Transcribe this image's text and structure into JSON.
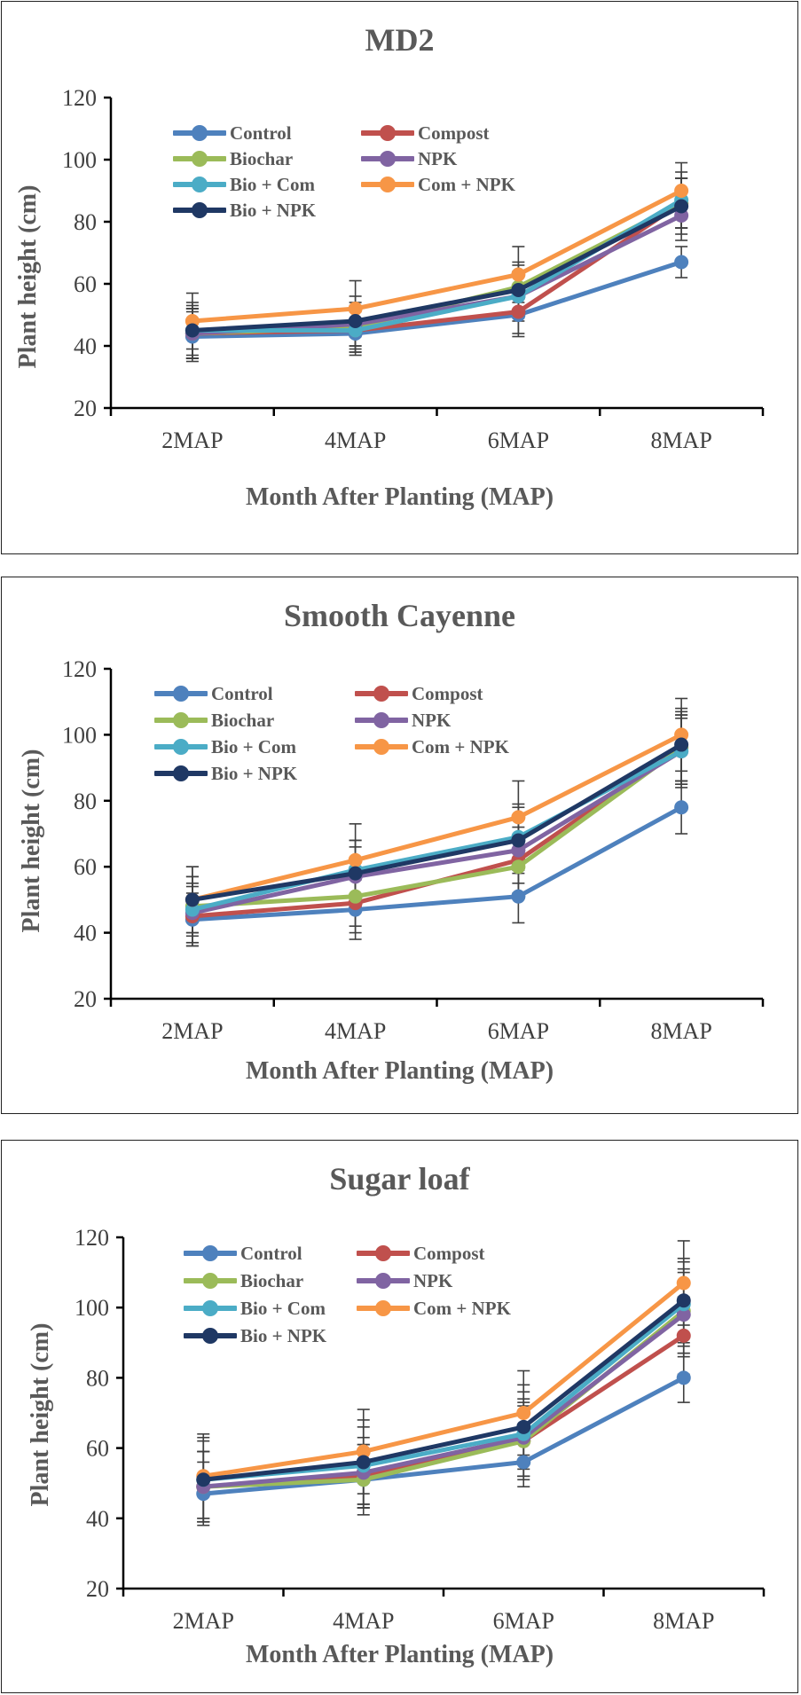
{
  "colors": {
    "Control": "#4e81bd",
    "Compost": "#c0504d",
    "Biochar": "#9bbb59",
    "NPK": "#8064a2",
    "Bio + Com": "#4bacc6",
    "Com + NPK": "#f79646",
    "Bio + NPK": "#1f3864",
    "axis": "#000000",
    "errorbar": "#404040",
    "text": "#595959"
  },
  "chart_data": [
    {
      "type": "line",
      "title": "MD2",
      "xlabel": "Month After Planting (MAP)",
      "ylabel": "Plant height (cm)",
      "ylim": [
        20,
        120
      ],
      "yticks": [
        20,
        40,
        60,
        80,
        100,
        120
      ],
      "categories": [
        "2MAP",
        "4MAP",
        "6MAP",
        "8MAP"
      ],
      "legend": "top-left",
      "series": [
        {
          "name": "Control",
          "values": [
            43,
            44,
            50,
            67
          ],
          "errors": [
            8,
            7,
            7,
            5
          ]
        },
        {
          "name": "Compost",
          "values": [
            44,
            45,
            51,
            86
          ],
          "errors": [
            8,
            7,
            7,
            8
          ]
        },
        {
          "name": "Biochar",
          "values": [
            44,
            46,
            59,
            86
          ],
          "errors": [
            8,
            7,
            8,
            8
          ]
        },
        {
          "name": "NPK",
          "values": [
            44,
            47,
            56,
            82
          ],
          "errors": [
            8,
            7,
            8,
            8
          ]
        },
        {
          "name": "Bio + Com",
          "values": [
            45,
            45,
            56,
            87
          ],
          "errors": [
            8,
            7,
            7,
            9
          ]
        },
        {
          "name": "Com + NPK",
          "values": [
            48,
            52,
            63,
            90
          ],
          "errors": [
            9,
            9,
            9,
            9
          ]
        },
        {
          "name": "Bio + NPK",
          "values": [
            45,
            48,
            58,
            85
          ],
          "errors": [
            9,
            8,
            8,
            9
          ]
        }
      ]
    },
    {
      "type": "line",
      "title": "Smooth Cayenne",
      "xlabel": "Month After Planting (MAP)",
      "ylabel": "Plant height (cm)",
      "ylim": [
        20,
        120
      ],
      "yticks": [
        20,
        40,
        60,
        80,
        100,
        120
      ],
      "categories": [
        "2MAP",
        "4MAP",
        "6MAP",
        "8MAP"
      ],
      "legend": "top-left",
      "series": [
        {
          "name": "Control",
          "values": [
            44,
            47,
            51,
            78
          ],
          "errors": [
            8,
            9,
            8,
            8
          ]
        },
        {
          "name": "Compost",
          "values": [
            45,
            49,
            62,
            96
          ],
          "errors": [
            9,
            9,
            10,
            10
          ]
        },
        {
          "name": "Biochar",
          "values": [
            48,
            51,
            60,
            96
          ],
          "errors": [
            9,
            9,
            9,
            11
          ]
        },
        {
          "name": "NPK",
          "values": [
            46,
            57,
            65,
            95
          ],
          "errors": [
            9,
            9,
            10,
            10
          ]
        },
        {
          "name": "Bio + Com",
          "values": [
            47,
            59,
            69,
            95
          ],
          "errors": [
            10,
            9,
            10,
            11
          ]
        },
        {
          "name": "Com + NPK",
          "values": [
            50,
            62,
            75,
            100
          ],
          "errors": [
            10,
            11,
            11,
            11
          ]
        },
        {
          "name": "Bio + NPK",
          "values": [
            50,
            58,
            68,
            97
          ],
          "errors": [
            10,
            10,
            10,
            11
          ]
        }
      ]
    },
    {
      "type": "line",
      "title": "Sugar loaf",
      "xlabel": "Month After Planting (MAP)",
      "ylabel": "Plant height (cm)",
      "ylim": [
        20,
        120
      ],
      "yticks": [
        20,
        40,
        60,
        80,
        100,
        120
      ],
      "categories": [
        "2MAP",
        "4MAP",
        "6MAP",
        "8MAP"
      ],
      "legend": "top-left",
      "series": [
        {
          "name": "Control",
          "values": [
            47,
            51,
            56,
            80
          ],
          "errors": [
            9,
            8,
            7,
            7
          ]
        },
        {
          "name": "Compost",
          "values": [
            49,
            52,
            62,
            92
          ],
          "errors": [
            10,
            9,
            10,
            11
          ]
        },
        {
          "name": "Biochar",
          "values": [
            49,
            51,
            62,
            99
          ],
          "errors": [
            10,
            10,
            11,
            12
          ]
        },
        {
          "name": "NPK",
          "values": [
            49,
            53,
            63,
            98
          ],
          "errors": [
            10,
            10,
            11,
            12
          ]
        },
        {
          "name": "Bio + Com",
          "values": [
            51,
            55,
            64,
            101
          ],
          "errors": [
            11,
            11,
            12,
            12
          ]
        },
        {
          "name": "Com + NPK",
          "values": [
            52,
            59,
            70,
            107
          ],
          "errors": [
            12,
            12,
            12,
            12
          ]
        },
        {
          "name": "Bio + NPK",
          "values": [
            51,
            56,
            66,
            102
          ],
          "errors": [
            12,
            12,
            12,
            12
          ]
        }
      ]
    }
  ]
}
